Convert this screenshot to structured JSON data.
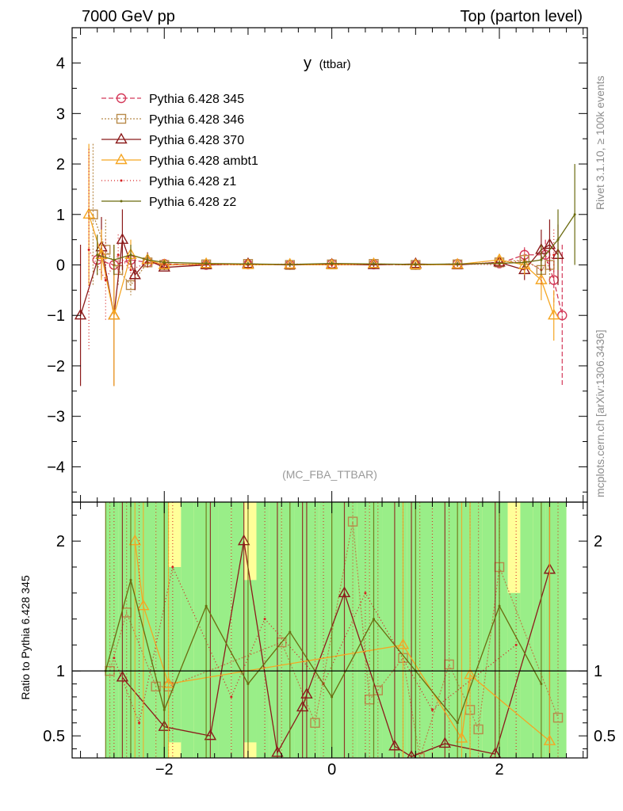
{
  "header": {
    "left": "7000 GeV pp",
    "right": "Top (parton level)"
  },
  "side_labels": {
    "rivet": "Rivet 3.1.10, ≥ 100k events",
    "mcplots": "mcplots.cern.ch [arXiv:1306.3436]"
  },
  "chart_data": [
    {
      "type": "line",
      "title": "y",
      "title_sub": "(ttbar)",
      "watermark": "(MC_FBA_TTBAR)",
      "xlim": [
        -3.1,
        3.05
      ],
      "ylim": [
        -4.7,
        4.7
      ],
      "yticks": [
        -4,
        -3,
        -2,
        -1,
        0,
        1,
        2,
        3,
        4
      ],
      "ytick_labels": [
        "−4",
        "−3",
        "−2",
        "−1",
        "0",
        "1",
        "2",
        "3",
        "4"
      ],
      "legend_position": "top-left",
      "series": [
        {
          "name": "Pythia 6.428 345",
          "color": "#d43a5a",
          "dash": "6,3",
          "marker": "circle",
          "x": [
            -2.8,
            -2.6,
            -2.4,
            -2.2,
            -2.0,
            -1.5,
            -1.0,
            -0.5,
            0.0,
            0.5,
            1.0,
            1.5,
            2.0,
            2.3,
            2.55,
            2.65,
            2.75
          ],
          "y": [
            0.1,
            0.0,
            0.1,
            0.05,
            0.02,
            0.0,
            0.01,
            0.0,
            0.02,
            0.01,
            0.0,
            0.02,
            0.03,
            0.2,
            0.2,
            -0.3,
            -1.0
          ],
          "yerr": [
            0.3,
            0.2,
            0.15,
            0.1,
            0.05,
            0.04,
            0.04,
            0.04,
            0.04,
            0.04,
            0.04,
            0.04,
            0.05,
            0.15,
            0.3,
            0.5,
            1.4
          ]
        },
        {
          "name": "Pythia 6.428 346",
          "color": "#b88a4a",
          "dash": "2,2",
          "marker": "square",
          "x": [
            -2.85,
            -2.7,
            -2.55,
            -2.4,
            -2.2,
            -2.0,
            -1.5,
            -1.0,
            -0.5,
            0.0,
            0.5,
            1.0,
            1.5,
            2.0,
            2.3,
            2.5,
            2.6
          ],
          "y": [
            1.0,
            0.3,
            -0.1,
            -0.4,
            0.05,
            0.0,
            0.01,
            0.02,
            0.0,
            0.01,
            0.02,
            0.0,
            0.01,
            0.05,
            0.1,
            -0.1,
            0.0
          ],
          "yerr": [
            1.4,
            0.6,
            0.3,
            0.2,
            0.1,
            0.05,
            0.04,
            0.04,
            0.04,
            0.04,
            0.04,
            0.04,
            0.04,
            0.05,
            0.15,
            0.3,
            0.4
          ]
        },
        {
          "name": "Pythia 6.428 370",
          "color": "#8b1a1a",
          "dash": "",
          "marker": "triangle",
          "x": [
            -3.0,
            -2.75,
            -2.6,
            -2.5,
            -2.35,
            -2.2,
            -2.0,
            -1.5,
            -1.0,
            -0.5,
            0.0,
            0.5,
            1.0,
            1.5,
            2.0,
            2.3,
            2.5,
            2.6,
            2.7
          ],
          "y": [
            -1.0,
            0.35,
            -1.0,
            0.5,
            -0.2,
            0.1,
            -0.05,
            0.0,
            0.02,
            0.0,
            0.01,
            0.0,
            0.02,
            0.0,
            0.05,
            -0.1,
            0.3,
            0.4,
            0.2
          ],
          "yerr": [
            1.4,
            0.6,
            1.4,
            0.6,
            0.3,
            0.15,
            0.05,
            0.04,
            0.04,
            0.04,
            0.04,
            0.04,
            0.04,
            0.04,
            0.05,
            0.2,
            0.4,
            0.5,
            0.6
          ]
        },
        {
          "name": "Pythia 6.428 ambt1",
          "color": "#f5a623",
          "dash": "",
          "marker": "triangle",
          "x": [
            -2.9,
            -2.75,
            -2.6,
            -2.4,
            -2.2,
            -2.0,
            -1.5,
            -1.0,
            -0.5,
            0.0,
            0.5,
            1.0,
            1.5,
            2.0,
            2.3,
            2.5,
            2.65
          ],
          "y": [
            1.0,
            0.2,
            -1.0,
            0.2,
            0.1,
            0.0,
            0.02,
            0.0,
            0.01,
            0.0,
            0.02,
            0.0,
            0.01,
            0.1,
            0.0,
            -0.3,
            -1.0
          ],
          "yerr": [
            1.4,
            0.5,
            1.4,
            0.3,
            0.1,
            0.05,
            0.04,
            0.04,
            0.04,
            0.04,
            0.04,
            0.04,
            0.04,
            0.08,
            0.2,
            0.4,
            0.5
          ]
        },
        {
          "name": "Pythia 6.428 z1",
          "color": "#d62020",
          "dash": "1,3",
          "marker": "dot",
          "x": [
            -2.9,
            -2.7,
            -2.55,
            -2.4,
            -2.2,
            -2.0,
            -1.5,
            -1.0,
            -0.5,
            0.0,
            0.5,
            1.0,
            1.5,
            2.0,
            2.3,
            2.5,
            2.65
          ],
          "y": [
            0.3,
            -0.3,
            0.2,
            -0.1,
            0.05,
            0.0,
            0.01,
            0.0,
            0.02,
            0.0,
            0.01,
            0.0,
            0.02,
            0.0,
            0.1,
            -0.1,
            0.2
          ],
          "yerr": [
            2.0,
            0.8,
            0.4,
            0.2,
            0.1,
            0.05,
            0.04,
            0.04,
            0.04,
            0.04,
            0.04,
            0.04,
            0.04,
            0.05,
            0.2,
            0.3,
            0.5
          ]
        },
        {
          "name": "Pythia 6.428 z2",
          "color": "#6b6b0f",
          "dash": "",
          "marker": "dot",
          "x": [
            -2.8,
            -2.6,
            -2.4,
            -2.2,
            -2.0,
            -1.5,
            -1.0,
            -0.5,
            0.0,
            0.5,
            1.0,
            1.5,
            2.0,
            2.3,
            2.5,
            2.7,
            2.9
          ],
          "y": [
            0.2,
            0.1,
            0.2,
            0.1,
            0.05,
            0.03,
            0.02,
            0.01,
            0.03,
            0.02,
            0.01,
            0.02,
            0.03,
            0.05,
            0.1,
            0.5,
            1.0
          ],
          "yerr": [
            0.4,
            0.3,
            0.2,
            0.1,
            0.05,
            0.04,
            0.04,
            0.04,
            0.04,
            0.04,
            0.04,
            0.04,
            0.05,
            0.1,
            0.3,
            0.6,
            1.0
          ]
        }
      ]
    },
    {
      "type": "line",
      "ylabel": "Ratio to Pythia 6.428 345",
      "xlim": [
        -3.1,
        3.05
      ],
      "ylim": [
        0.33,
        2.3
      ],
      "xticks": [
        -2,
        0,
        2
      ],
      "xtick_labels": [
        "−2",
        "0",
        "2"
      ],
      "yticks": [
        0.5,
        1,
        2
      ],
      "ytick_labels": [
        "0.5",
        "1",
        "2"
      ],
      "reference_line": 1,
      "band_colors": {
        "inner": "#99ee88",
        "outer": "#ffff99"
      },
      "band_edges": [
        -2.7,
        -2.55,
        -2.4,
        -2.25,
        -2.1,
        -1.95,
        -1.8,
        -1.65,
        -1.5,
        -1.35,
        -1.2,
        -1.05,
        -0.9,
        -0.75,
        -0.6,
        -0.45,
        -0.3,
        -0.15,
        0.0,
        0.15,
        0.3,
        0.45,
        0.6,
        0.75,
        0.9,
        1.05,
        1.2,
        1.35,
        1.5,
        1.65,
        1.8,
        1.95,
        2.1,
        2.25,
        2.4,
        2.55,
        2.7,
        2.8
      ],
      "band_inner_low": [
        0.33,
        0.33,
        0.33,
        0.33,
        0.33,
        0.45,
        0.33,
        0.33,
        0.33,
        0.33,
        0.33,
        0.45,
        0.33,
        0.33,
        0.33,
        0.33,
        0.33,
        0.33,
        0.33,
        0.33,
        0.33,
        0.33,
        0.33,
        0.33,
        0.33,
        0.33,
        0.33,
        0.33,
        0.33,
        0.33,
        0.33,
        0.33,
        0.33,
        0.33,
        0.33,
        0.33,
        0.33
      ],
      "band_inner_high": [
        2.3,
        2.3,
        2.3,
        2.3,
        2.3,
        1.8,
        2.3,
        2.3,
        2.3,
        2.3,
        2.3,
        1.7,
        2.3,
        2.3,
        2.3,
        2.3,
        2.3,
        2.3,
        2.3,
        2.3,
        2.3,
        2.3,
        2.3,
        2.3,
        2.3,
        2.3,
        2.3,
        2.3,
        2.3,
        2.3,
        2.3,
        2.3,
        1.6,
        2.3,
        2.3,
        2.3,
        2.3
      ],
      "series": [
        {
          "name": "Pythia 6.428 346",
          "color": "#b88a4a",
          "dash": "2,2",
          "marker": "square",
          "x": [
            -2.65,
            -2.45,
            -2.1,
            -1.95,
            -0.6,
            -0.2,
            0.25,
            0.45,
            0.55,
            0.85,
            1.05,
            1.4,
            1.65,
            1.75,
            2.0,
            2.7
          ],
          "y": [
            1.0,
            1.45,
            0.88,
            0.88,
            1.22,
            0.6,
            2.15,
            0.78,
            0.85,
            1.1,
            0.33,
            1.05,
            0.7,
            0.55,
            1.8,
            0.64
          ]
        },
        {
          "name": "Pythia 6.428 370",
          "color": "#8b1a1a",
          "dash": "",
          "marker": "triangle",
          "x": [
            -2.5,
            -2.0,
            -1.45,
            -1.05,
            -0.65,
            -0.35,
            -0.3,
            0.15,
            0.75,
            0.95,
            1.35,
            1.95,
            2.6
          ],
          "y": [
            0.95,
            0.57,
            0.5,
            2.0,
            0.37,
            0.72,
            0.82,
            1.6,
            0.42,
            0.34,
            0.44,
            0.36,
            1.78
          ]
        },
        {
          "name": "Pythia 6.428 ambt1",
          "color": "#f5a623",
          "dash": "",
          "marker": "triangle",
          "x": [
            -2.35,
            -2.25,
            -1.95,
            0.85,
            1.55,
            1.65,
            2.6
          ],
          "y": [
            2.0,
            1.5,
            0.9,
            1.2,
            0.48,
            0.97,
            0.46
          ]
        },
        {
          "name": "Pythia 6.428 z1",
          "color": "#d62020",
          "dash": "1,3",
          "marker": "dot",
          "x": [
            -2.6,
            -2.3,
            -1.9,
            -1.2,
            -0.8,
            -0.1,
            0.4,
            1.2,
            2.2
          ],
          "y": [
            1.1,
            0.6,
            1.8,
            0.8,
            1.4,
            0.9,
            1.6,
            0.7,
            1.2
          ]
        },
        {
          "name": "Pythia 6.428 z2",
          "color": "#6b6b0f",
          "dash": "",
          "marker": "dot",
          "x": [
            -2.7,
            -2.4,
            -2.0,
            -1.5,
            -1.0,
            -0.5,
            0.0,
            0.5,
            1.0,
            1.5,
            2.0,
            2.5
          ],
          "y": [
            1.0,
            1.7,
            0.7,
            1.5,
            0.9,
            1.3,
            0.8,
            1.4,
            1.0,
            0.6,
            1.5,
            0.9
          ]
        }
      ]
    }
  ]
}
